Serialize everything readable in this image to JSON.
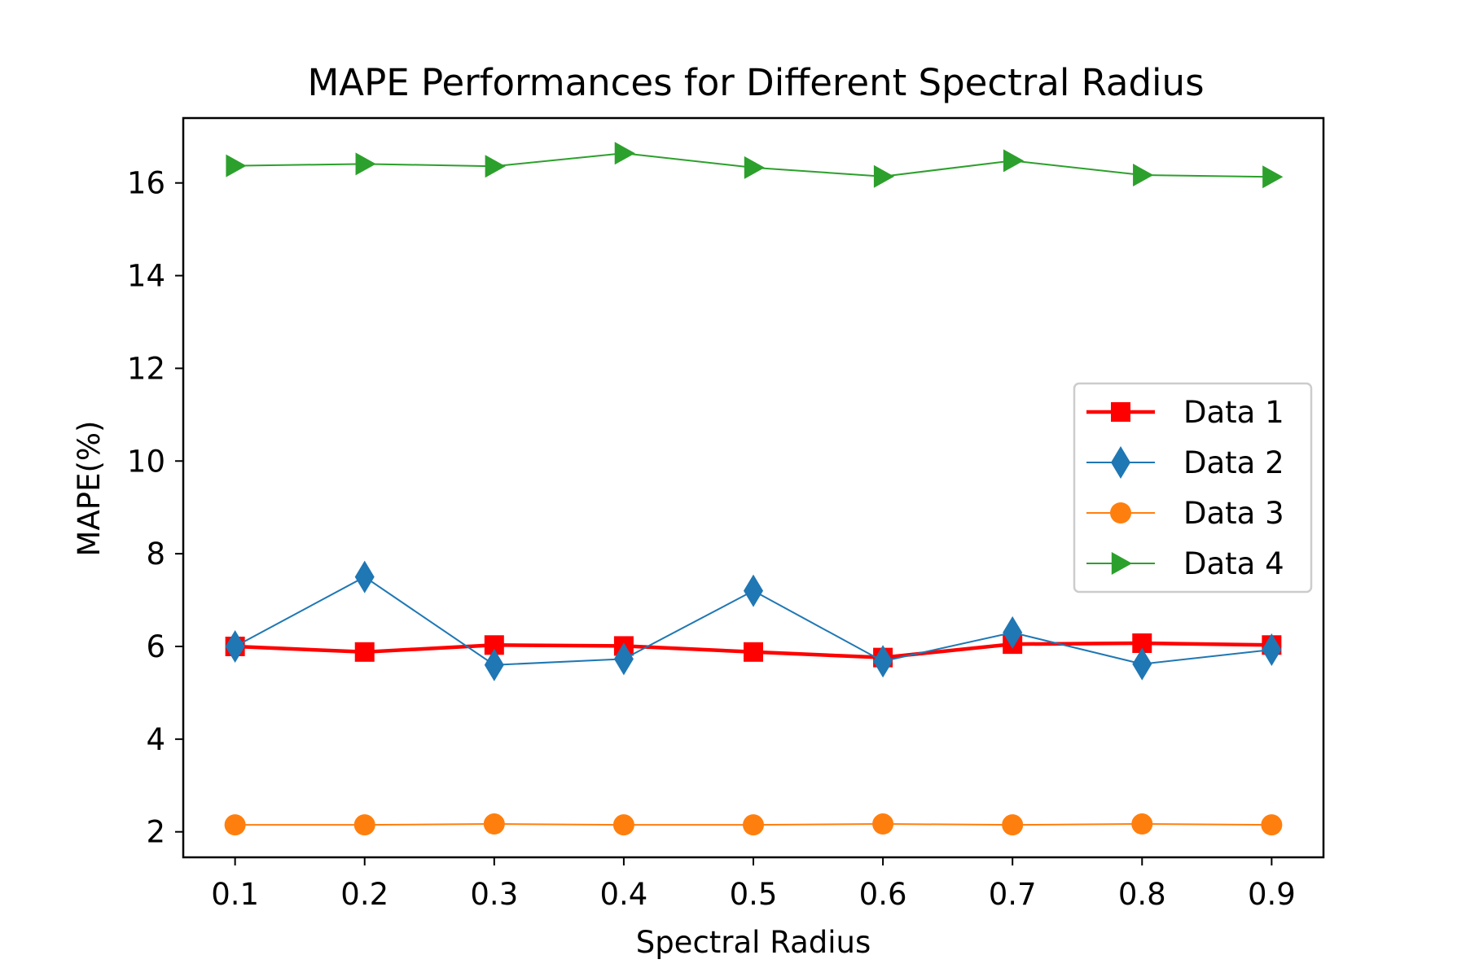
{
  "chart_data": {
    "type": "line",
    "title": "MAPE Performances for Different Spectral Radius",
    "xlabel": "Spectral Radius",
    "ylabel": "MAPE(%)",
    "x": [
      0.1,
      0.2,
      0.3,
      0.4,
      0.5,
      0.6,
      0.7,
      0.8,
      0.9
    ],
    "x_tick_labels": [
      "0.1",
      "0.2",
      "0.3",
      "0.4",
      "0.5",
      "0.6",
      "0.7",
      "0.8",
      "0.9"
    ],
    "xlim": [
      0.06,
      0.94
    ],
    "ylim": [
      1.45,
      17.4
    ],
    "y_ticks": [
      2,
      4,
      6,
      8,
      10,
      12,
      14,
      16
    ],
    "y_tick_labels": [
      "2",
      "4",
      "6",
      "8",
      "10",
      "12",
      "14",
      "16"
    ],
    "grid": false,
    "legend_position": "center-right",
    "series": [
      {
        "name": "Data 1",
        "color": "#ff0000",
        "marker": "square",
        "values": [
          6.0,
          5.88,
          6.03,
          6.01,
          5.88,
          5.76,
          6.05,
          6.07,
          6.03
        ]
      },
      {
        "name": "Data 2",
        "color": "#1f77b4",
        "marker": "diamond",
        "values": [
          6.0,
          7.5,
          5.6,
          5.73,
          7.2,
          5.68,
          6.3,
          5.62,
          5.93
        ]
      },
      {
        "name": "Data 3",
        "color": "#ff7f0e",
        "marker": "circle",
        "values": [
          2.15,
          2.15,
          2.17,
          2.15,
          2.15,
          2.17,
          2.15,
          2.17,
          2.15
        ]
      },
      {
        "name": "Data 4",
        "color": "#2ca02c",
        "marker": "triangle-right",
        "values": [
          16.37,
          16.41,
          16.36,
          16.64,
          16.33,
          16.14,
          16.48,
          16.17,
          16.13
        ]
      }
    ]
  }
}
